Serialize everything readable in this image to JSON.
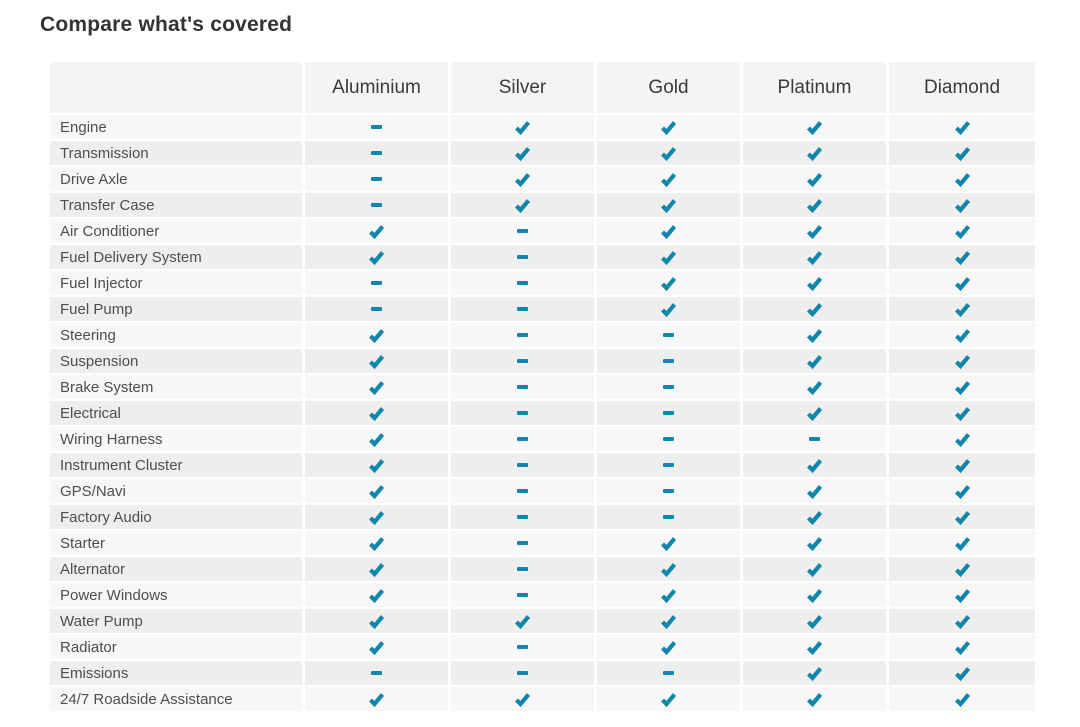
{
  "page": {
    "title": "Compare what's covered"
  },
  "table": {
    "check_color": "#1086ac",
    "row_bg_light": "#f7f7f7",
    "row_bg_dark": "#eeeeee",
    "header_bg": "#f4f4f4",
    "plans": [
      "Aluminium",
      "Silver",
      "Gold",
      "Platinum",
      "Diamond"
    ],
    "covered_icon": "check-icon",
    "not_covered_icon": "dash-icon",
    "rows": [
      {
        "label": "Engine",
        "covered": [
          false,
          true,
          true,
          true,
          true
        ]
      },
      {
        "label": "Transmission",
        "covered": [
          false,
          true,
          true,
          true,
          true
        ]
      },
      {
        "label": "Drive Axle",
        "covered": [
          false,
          true,
          true,
          true,
          true
        ]
      },
      {
        "label": "Transfer Case",
        "covered": [
          false,
          true,
          true,
          true,
          true
        ]
      },
      {
        "label": "Air Conditioner",
        "covered": [
          true,
          false,
          true,
          true,
          true
        ]
      },
      {
        "label": "Fuel Delivery System",
        "covered": [
          true,
          false,
          true,
          true,
          true
        ]
      },
      {
        "label": "Fuel Injector",
        "covered": [
          false,
          false,
          true,
          true,
          true
        ]
      },
      {
        "label": "Fuel Pump",
        "covered": [
          false,
          false,
          true,
          true,
          true
        ]
      },
      {
        "label": "Steering",
        "covered": [
          true,
          false,
          false,
          true,
          true
        ]
      },
      {
        "label": "Suspension",
        "covered": [
          true,
          false,
          false,
          true,
          true
        ]
      },
      {
        "label": "Brake System",
        "covered": [
          true,
          false,
          false,
          true,
          true
        ]
      },
      {
        "label": "Electrical",
        "covered": [
          true,
          false,
          false,
          true,
          true
        ]
      },
      {
        "label": "Wiring Harness",
        "covered": [
          true,
          false,
          false,
          false,
          true
        ]
      },
      {
        "label": "Instrument Cluster",
        "covered": [
          true,
          false,
          false,
          true,
          true
        ]
      },
      {
        "label": "GPS/Navi",
        "covered": [
          true,
          false,
          false,
          true,
          true
        ]
      },
      {
        "label": "Factory Audio",
        "covered": [
          true,
          false,
          false,
          true,
          true
        ]
      },
      {
        "label": "Starter",
        "covered": [
          true,
          false,
          true,
          true,
          true
        ]
      },
      {
        "label": "Alternator",
        "covered": [
          true,
          false,
          true,
          true,
          true
        ]
      },
      {
        "label": "Power Windows",
        "covered": [
          true,
          false,
          true,
          true,
          true
        ]
      },
      {
        "label": "Water Pump",
        "covered": [
          true,
          true,
          true,
          true,
          true
        ]
      },
      {
        "label": "Radiator",
        "covered": [
          true,
          false,
          true,
          true,
          true
        ]
      },
      {
        "label": "Emissions",
        "covered": [
          false,
          false,
          false,
          true,
          true
        ]
      },
      {
        "label": "24/7 Roadside Assistance",
        "covered": [
          true,
          true,
          true,
          true,
          true
        ]
      }
    ]
  }
}
